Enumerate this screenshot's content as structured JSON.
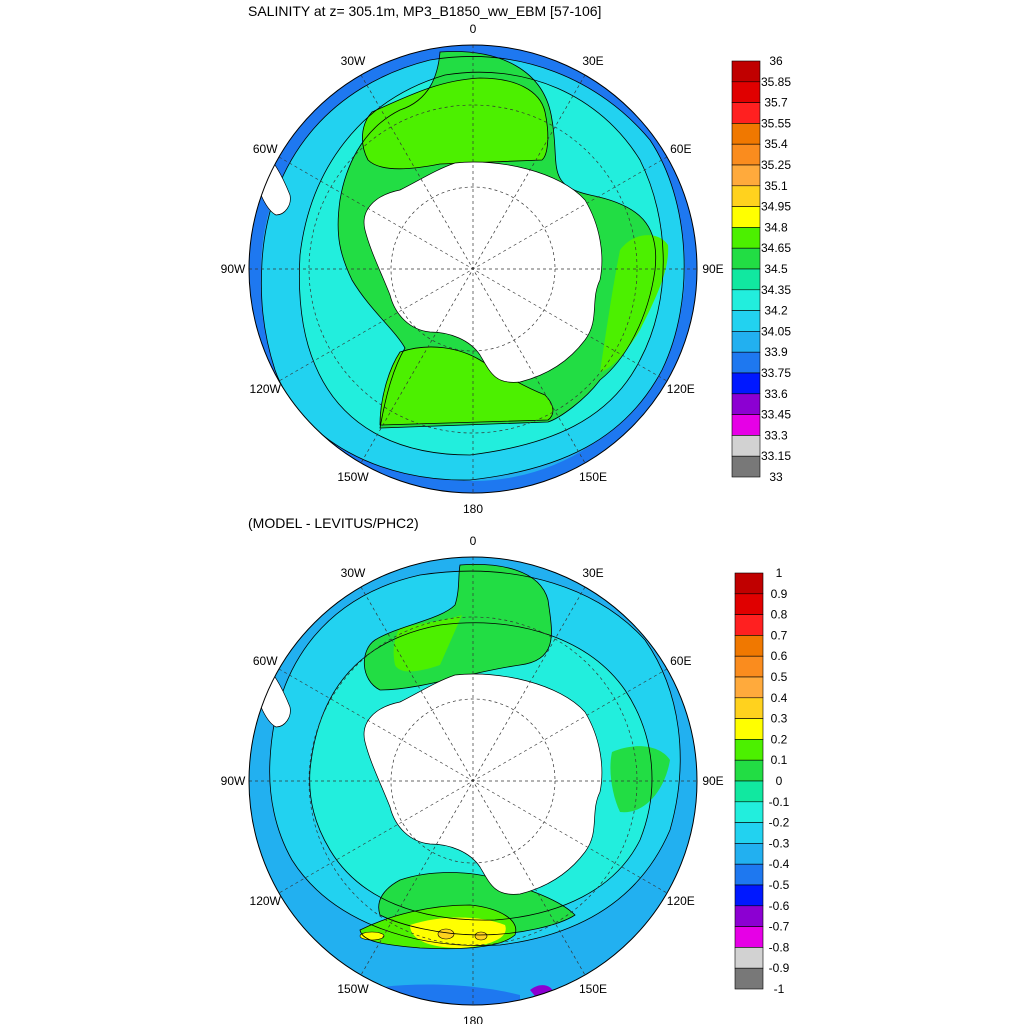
{
  "panels": [
    {
      "title": "SALINITY at z= 305.1m, MP3_B1850_ww_EBM [57-106]",
      "longitude_labels": [
        "0",
        "30E",
        "60E",
        "90E",
        "120E",
        "150E",
        "180",
        "150W",
        "120W",
        "90W",
        "60W",
        "30W"
      ],
      "colorbar": {
        "labels": [
          "36",
          "35.85",
          "35.7",
          "35.55",
          "35.4",
          "35.25",
          "35.1",
          "34.95",
          "34.8",
          "34.65",
          "34.5",
          "34.35",
          "34.2",
          "34.05",
          "33.9",
          "33.75",
          "33.6",
          "33.45",
          "33.3",
          "33.15",
          "33"
        ],
        "colors": [
          "#c00000",
          "#e00000",
          "#ff2020",
          "#f07800",
          "#fa8c1e",
          "#ffaa3c",
          "#ffd21e",
          "#ffff00",
          "#4cf000",
          "#22dd44",
          "#11e8a0",
          "#22eedd",
          "#22d2f0",
          "#22b0f0",
          "#1e78f0",
          "#0018ff",
          "#8c00d2",
          "#e600e6",
          "#d2d2d2",
          "#787878"
        ]
      }
    },
    {
      "title": "(MODEL - LEVITUS/PHC2)",
      "longitude_labels": [
        "0",
        "30E",
        "60E",
        "90E",
        "120E",
        "150E",
        "180",
        "150W",
        "120W",
        "90W",
        "60W",
        "30W"
      ],
      "colorbar": {
        "labels": [
          "1",
          "0.9",
          "0.8",
          "0.7",
          "0.6",
          "0.5",
          "0.4",
          "0.3",
          "0.2",
          "0.1",
          "0",
          "-0.1",
          "-0.2",
          "-0.3",
          "-0.4",
          "-0.5",
          "-0.6",
          "-0.7",
          "-0.8",
          "-0.9",
          "-1"
        ],
        "colors": [
          "#c00000",
          "#e00000",
          "#ff2020",
          "#f07800",
          "#fa8c1e",
          "#ffaa3c",
          "#ffd21e",
          "#ffff00",
          "#4cf000",
          "#22dd44",
          "#11e8a0",
          "#22eedd",
          "#22d2f0",
          "#22b0f0",
          "#1e78f0",
          "#0018ff",
          "#8c00d2",
          "#e600e6",
          "#d2d2d2",
          "#787878"
        ]
      }
    }
  ]
}
